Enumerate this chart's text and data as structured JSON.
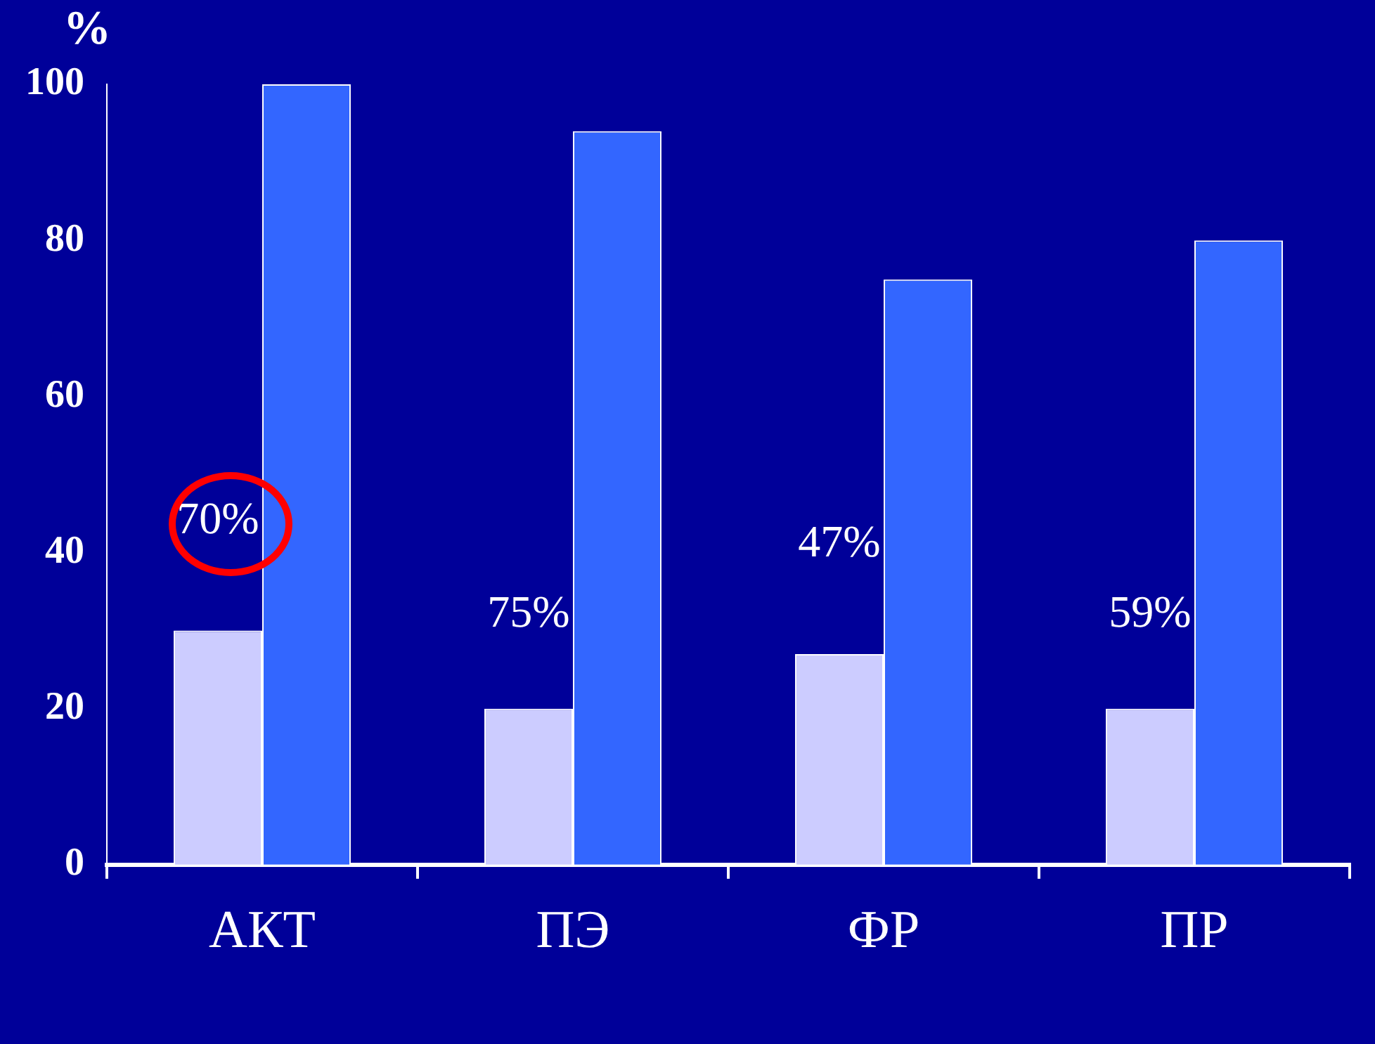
{
  "chart_data": {
    "type": "bar",
    "ylabel": "%",
    "categories": [
      "АКТ",
      "ПЭ",
      "ФР",
      "ПР"
    ],
    "series": [
      {
        "color": "#ccccff",
        "values": [
          30,
          20,
          27,
          20
        ]
      },
      {
        "color": "#3366ff",
        "values": [
          100,
          94,
          75,
          80
        ]
      }
    ],
    "ylim": [
      0,
      100
    ],
    "yticks": [
      0,
      20,
      40,
      60,
      80,
      100
    ],
    "legend": false,
    "annotations": [
      {
        "text": "70%",
        "x": "АКТ",
        "y": 44
      },
      {
        "text": "75%",
        "x": "ПЭ",
        "y": 32
      },
      {
        "text": "47%",
        "x": "ФР",
        "y": 41
      },
      {
        "text": "59%",
        "x": "ПР",
        "y": 32
      }
    ]
  }
}
